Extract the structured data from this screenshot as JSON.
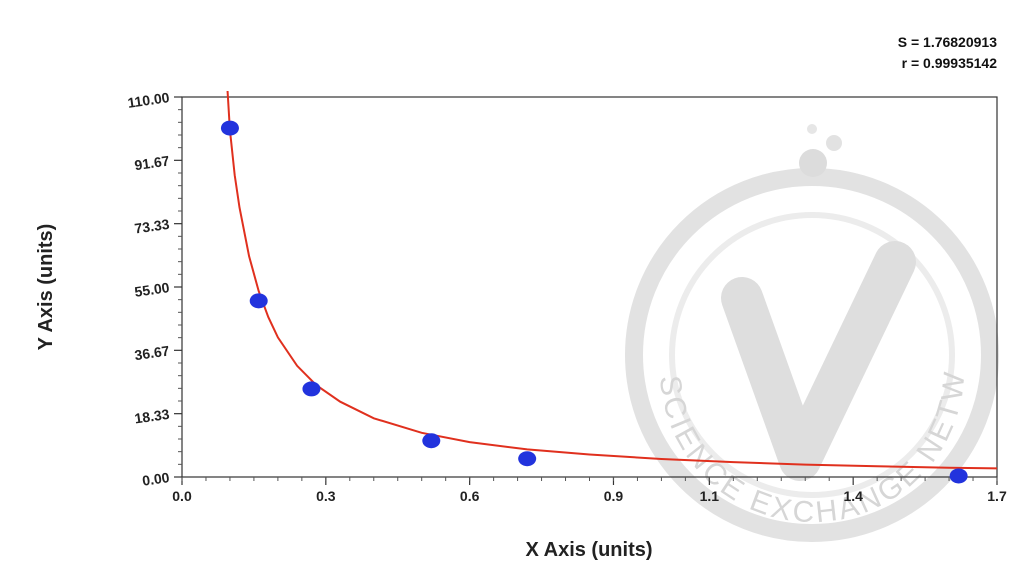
{
  "chart_data": {
    "type": "scatter",
    "title": "",
    "xlabel": "X Axis (units)",
    "ylabel": "Y Axis (units)",
    "xlim": [
      0.0,
      1.7
    ],
    "ylim": [
      0.0,
      110.0
    ],
    "x_ticks": [
      0.0,
      0.3,
      0.6,
      0.9,
      1.1,
      1.4,
      1.7
    ],
    "x_tick_labels": [
      "0.0",
      "0.3",
      "0.6",
      "0.9",
      "1.1",
      "1.4",
      "1.7"
    ],
    "y_ticks": [
      0.0,
      18.33,
      36.67,
      55.0,
      73.33,
      91.67,
      110.0
    ],
    "y_tick_labels": [
      "0.00",
      "18.33",
      "36.67",
      "55.00",
      "73.33",
      "91.67",
      "110.00"
    ],
    "grid": false,
    "series": [
      {
        "kind": "points",
        "color": "#2233dd",
        "x": [
          0.1,
          0.16,
          0.27,
          0.52,
          0.72,
          1.62
        ],
        "y": [
          101.0,
          51.0,
          25.5,
          10.5,
          5.3,
          0.3
        ]
      },
      {
        "kind": "fit-curve",
        "color": "#e0301e",
        "x": [
          0.095,
          0.1,
          0.11,
          0.12,
          0.14,
          0.16,
          0.18,
          0.2,
          0.24,
          0.28,
          0.33,
          0.4,
          0.5,
          0.6,
          0.72,
          0.85,
          1.0,
          1.15,
          1.3,
          1.45,
          1.6,
          1.7
        ],
        "y": [
          112.0,
          100.5,
          87.4,
          78.0,
          63.9,
          53.8,
          46.3,
          40.4,
          32.2,
          26.6,
          21.8,
          17.0,
          12.8,
          10.1,
          8.0,
          6.5,
          5.2,
          4.3,
          3.6,
          3.1,
          2.7,
          2.5
        ]
      }
    ],
    "stats": {
      "s": "S = 1.76820913",
      "r": "r = 0.99935142"
    },
    "watermark": {
      "text": "THE SCIENCE EXCHANGE NETWORK"
    }
  }
}
